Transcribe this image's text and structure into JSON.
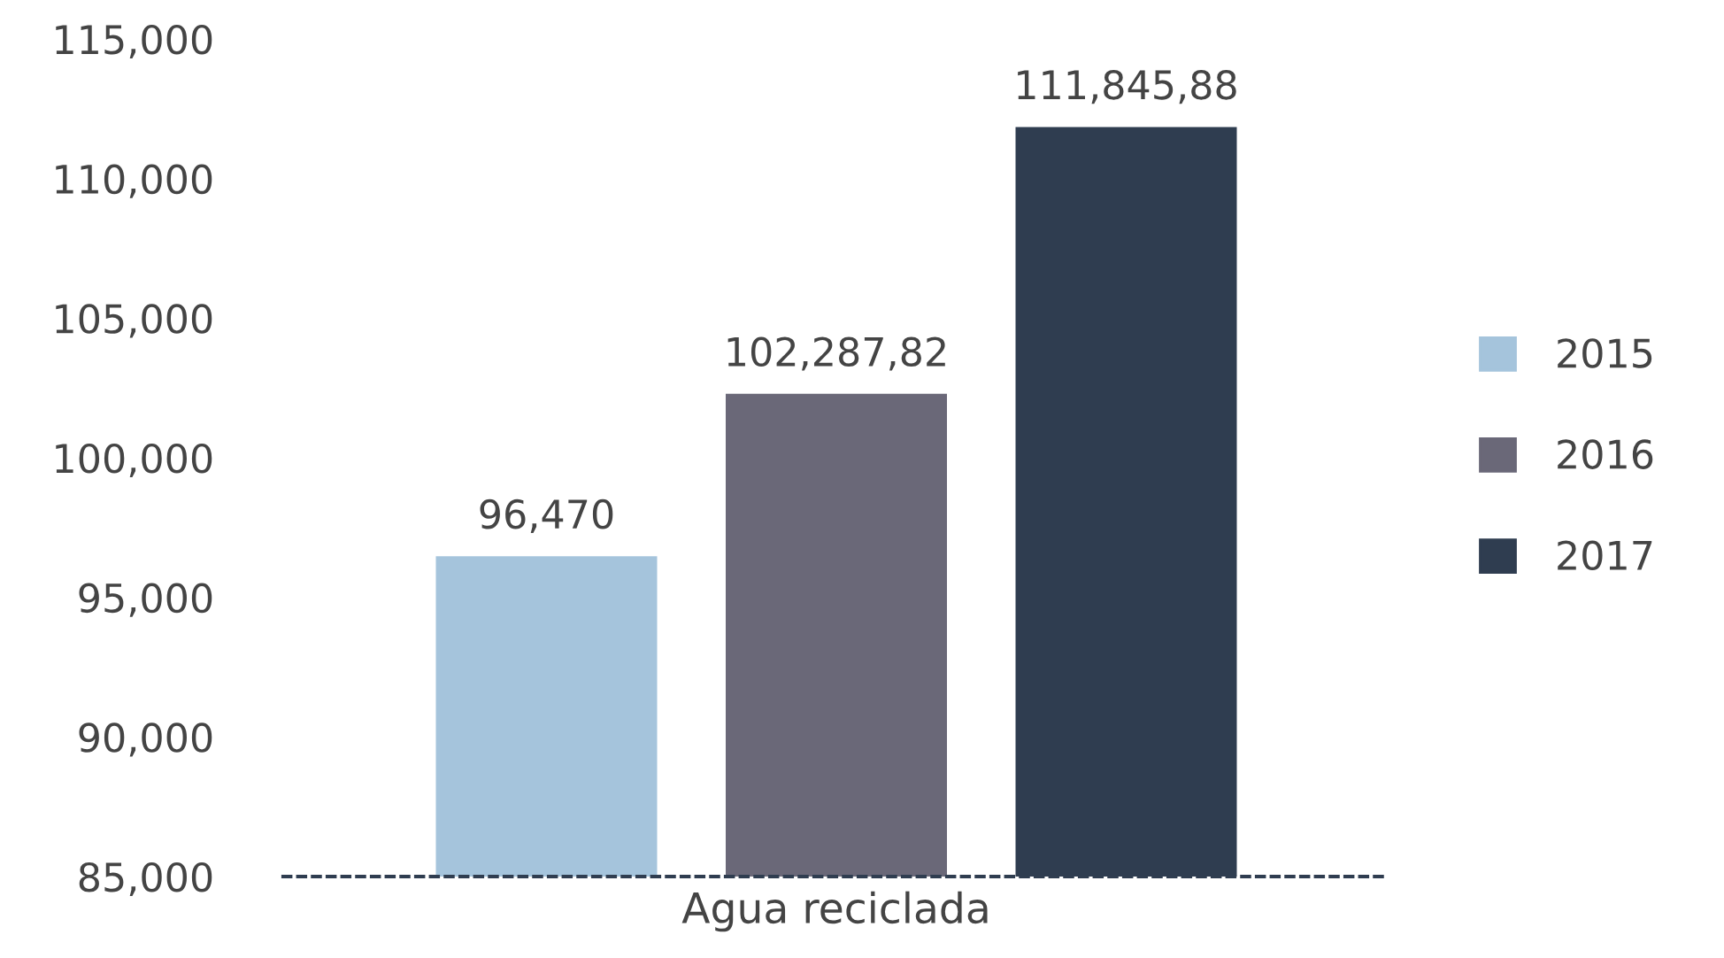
{
  "chart_data": {
    "type": "bar",
    "categories": [
      "Agua reciclada"
    ],
    "series": [
      {
        "name": "2015",
        "color": "#a5c4dc",
        "values": [
          96470
        ],
        "value_labels": [
          "96,470"
        ]
      },
      {
        "name": "2016",
        "color": "#6a6878",
        "values": [
          102287.82
        ],
        "value_labels": [
          "102,287,82"
        ]
      },
      {
        "name": "2017",
        "color": "#2f3d50",
        "values": [
          111845.88
        ],
        "value_labels": [
          "111,845,88"
        ]
      }
    ],
    "ylim": [
      85000,
      115000
    ],
    "yticks": [
      {
        "value": 85000,
        "label": "85,000"
      },
      {
        "value": 90000,
        "label": "90,000"
      },
      {
        "value": 95000,
        "label": "95,000"
      },
      {
        "value": 100000,
        "label": "100,000"
      },
      {
        "value": 105000,
        "label": "105,000"
      },
      {
        "value": 110000,
        "label": "110,000"
      },
      {
        "value": 115000,
        "label": "115,000"
      }
    ],
    "grid": false,
    "legend": "right"
  }
}
